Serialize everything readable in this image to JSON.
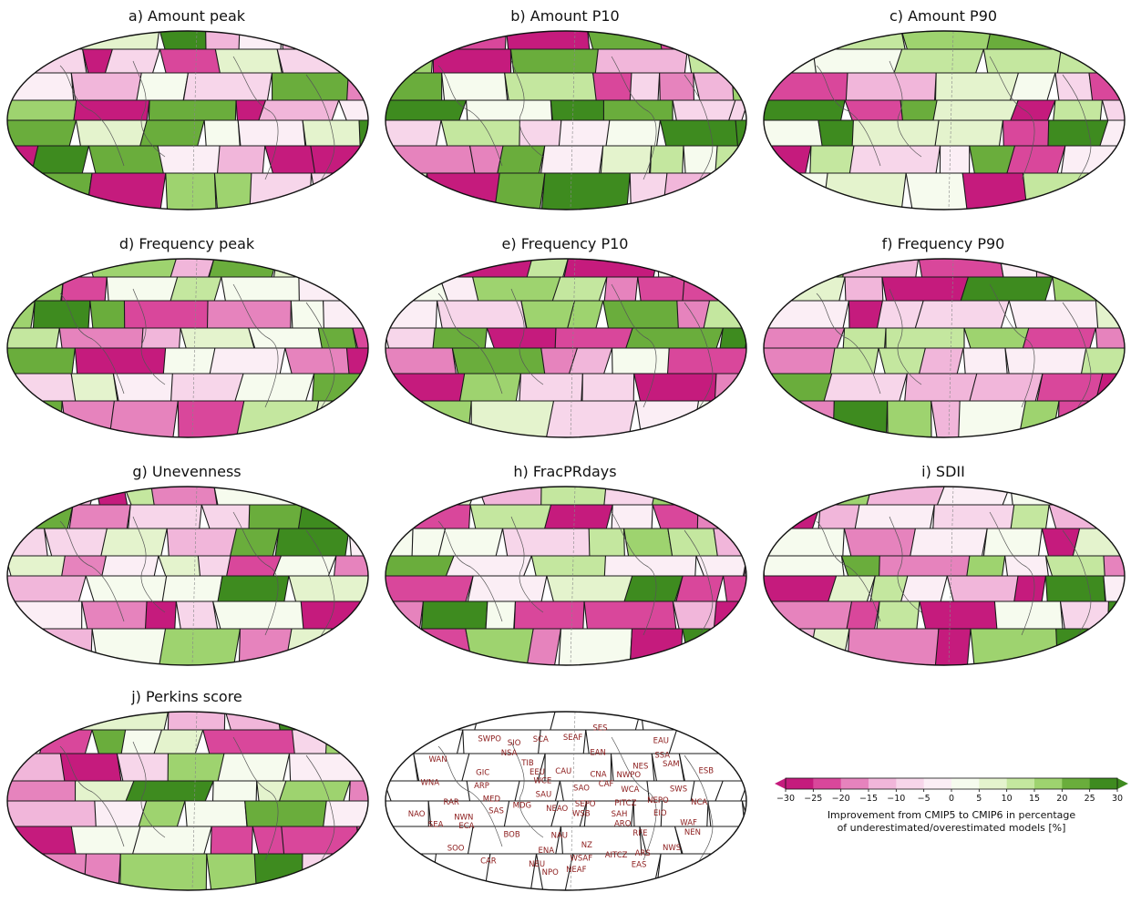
{
  "panels": [
    {
      "title": "a) Amount peak",
      "seed": 11
    },
    {
      "title": "b) Amount P10",
      "seed": 23
    },
    {
      "title": "c) Amount P90",
      "seed": 37
    },
    {
      "title": "d) Frequency peak",
      "seed": 41
    },
    {
      "title": "e) Frequency P10",
      "seed": 53
    },
    {
      "title": "f) Frequency P90",
      "seed": 67
    },
    {
      "title": "g) Unevenness",
      "seed": 71
    },
    {
      "title": "h) FracPRdays",
      "seed": 83
    },
    {
      "title": "i) SDII",
      "seed": 97
    },
    {
      "title": "j) Perkins score",
      "seed": 101
    }
  ],
  "region_labels": [
    "RAR",
    "ARO",
    "NWN",
    "NEN",
    "GIC",
    "NEU",
    "WCE",
    "MED",
    "EEU",
    "WSB",
    "ESB",
    "RFE",
    "WCA",
    "ECA",
    "TIB",
    "EAS",
    "SAS",
    "ARP",
    "ARS",
    "BOB",
    "NEAF",
    "SEAF",
    "MDG",
    "EIO",
    "SIO",
    "SEA",
    "NAU",
    "CAU",
    "EAU",
    "SAU",
    "NZ",
    "NPO",
    "NEPO",
    "NWPO",
    "PITCZ",
    "SWPO",
    "SEPO",
    "WNA",
    "CNA",
    "ENA",
    "NCA",
    "CAR",
    "SCA",
    "NWS",
    "NSA",
    "SAM",
    "NES",
    "SES",
    "SWS",
    "SSA",
    "NAO",
    "NEAO",
    "AITCZ",
    "SAH",
    "WAF",
    "CAF",
    "SAO",
    "WSAF",
    "SOO",
    "EAN",
    "WAN"
  ],
  "colorbar": {
    "ticks": [
      "−30",
      "−25",
      "−20",
      "−15",
      "−10",
      "−5",
      "0",
      "5",
      "10",
      "15",
      "20",
      "25",
      "30"
    ],
    "colors": [
      "#c51b7d",
      "#d9479b",
      "#e683bd",
      "#f1b6da",
      "#f7d6ea",
      "#fbeef5",
      "#f6fbee",
      "#e4f3cd",
      "#c4e79f",
      "#9ed36f",
      "#6aad3c",
      "#3e8b1f"
    ],
    "label_line1": "Improvement from CMIP5 to CMIP6 in percentage",
    "label_line2": "of underestimated/overestimated models [%]"
  }
}
